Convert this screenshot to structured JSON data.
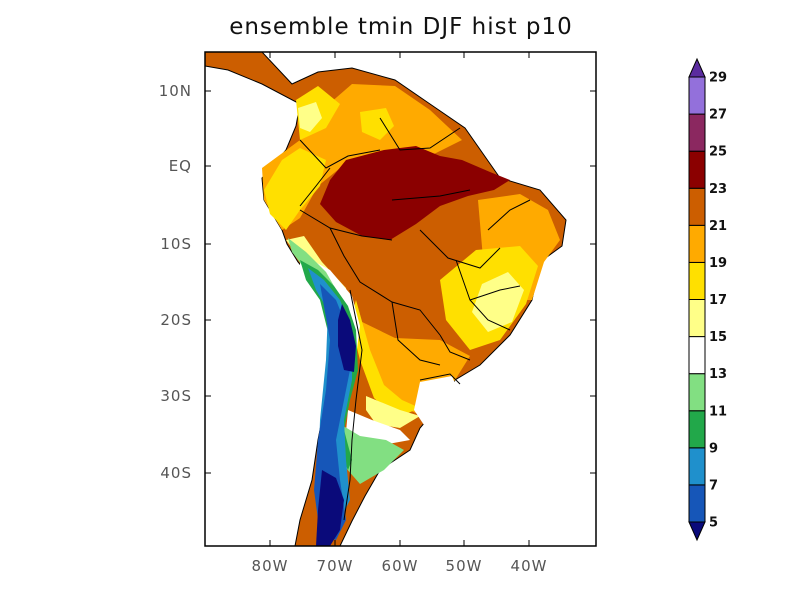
{
  "title": "ensemble tmin DJF hist p10",
  "map": {
    "region": "South America",
    "lon_range": [
      -90,
      -29
    ],
    "lat_range": [
      -50,
      13
    ],
    "y_ticks": [
      {
        "label": "10N",
        "lat": 10
      },
      {
        "label": "EQ",
        "lat": 0
      },
      {
        "label": "10S",
        "lat": -10
      },
      {
        "label": "20S",
        "lat": -20
      },
      {
        "label": "30S",
        "lat": -30
      },
      {
        "label": "40S",
        "lat": -40
      }
    ],
    "x_ticks": [
      {
        "label": "80W",
        "lon": -80
      },
      {
        "label": "70W",
        "lon": -70
      },
      {
        "label": "60W",
        "lon": -60
      },
      {
        "label": "50W",
        "lon": -50
      },
      {
        "label": "40W",
        "lon": -40
      }
    ]
  },
  "colorbar": {
    "levels": [
      "5",
      "7",
      "9",
      "11",
      "13",
      "15",
      "17",
      "19",
      "21",
      "23",
      "25",
      "27",
      "29"
    ],
    "colors": [
      "#0a0a7a",
      "#1656b8",
      "#1f90cc",
      "#22a84a",
      "#82df82",
      "#ffffff",
      "#ffff88",
      "#ffe000",
      "#ffaa00",
      "#cc5e00",
      "#8b0000",
      "#8b2860",
      "#9370db",
      "#5b2ca0"
    ]
  }
}
